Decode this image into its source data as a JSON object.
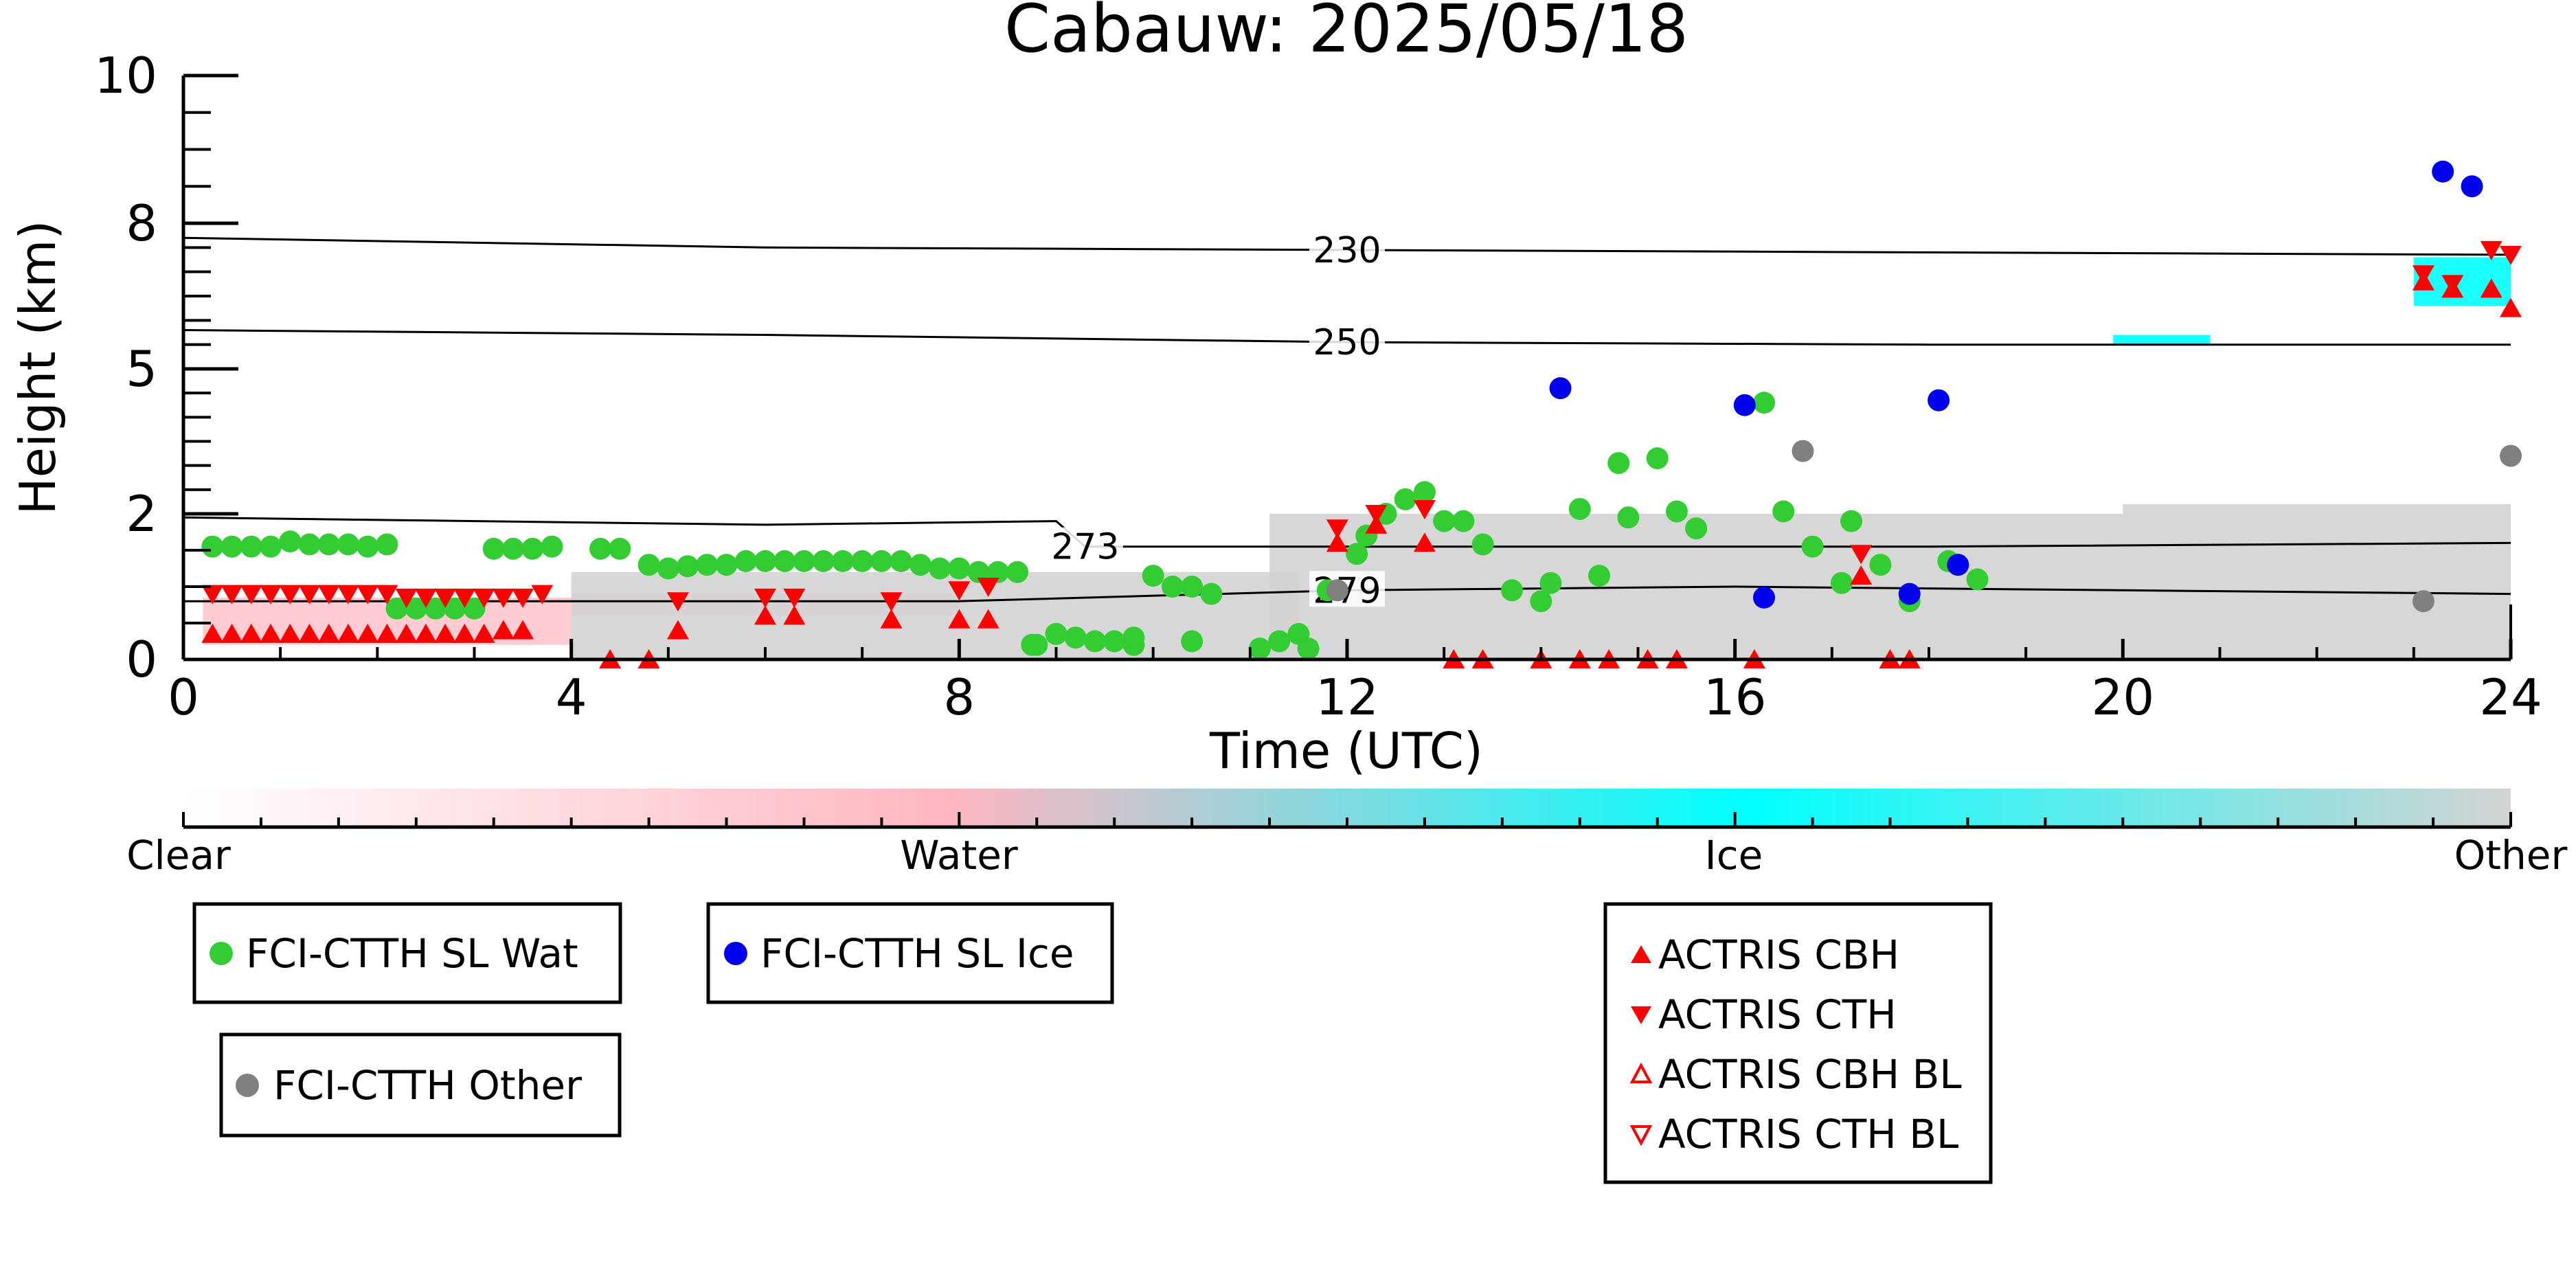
{
  "chart_data": {
    "type": "scatter",
    "title": "Cabauw: 2025/05/18",
    "xlabel": "Time (UTC)",
    "ylabel": "Height (km)",
    "xlim": [
      0,
      24
    ],
    "ylim": [
      0,
      10
    ],
    "x_ticks": [
      0,
      4,
      8,
      12,
      16,
      20,
      24
    ],
    "y_ticks": [
      0,
      2,
      5,
      8,
      10
    ],
    "y_scale": "nonlinear (0-2 km expanded)",
    "grid": false,
    "colorbar": {
      "labels": [
        "Clear",
        "Water",
        "Ice",
        "Other"
      ],
      "colors": [
        "#ffffff",
        "#ffb6c1",
        "#00ffff",
        "#d3d3d3"
      ]
    },
    "contours": [
      {
        "label": "230",
        "points": [
          [
            0,
            7.7
          ],
          [
            6,
            7.5
          ],
          [
            12,
            7.45
          ],
          [
            18,
            7.4
          ],
          [
            24,
            7.35
          ]
        ]
      },
      {
        "label": "250",
        "points": [
          [
            0,
            5.8
          ],
          [
            6,
            5.7
          ],
          [
            12,
            5.55
          ],
          [
            18,
            5.5
          ],
          [
            24,
            5.5
          ]
        ]
      },
      {
        "label": "273",
        "points": [
          [
            0,
            1.95
          ],
          [
            6,
            1.85
          ],
          [
            9,
            1.9
          ],
          [
            9.3,
            1.55
          ],
          [
            12,
            1.55
          ],
          [
            18,
            1.55
          ],
          [
            24,
            1.6
          ]
        ]
      },
      {
        "label": "279",
        "points": [
          [
            0,
            0.8
          ],
          [
            4,
            0.8
          ],
          [
            8,
            0.8
          ],
          [
            12,
            0.95
          ],
          [
            16,
            1.0
          ],
          [
            20,
            0.95
          ],
          [
            24,
            0.9
          ]
        ]
      }
    ],
    "cloud_regions": [
      {
        "class": "Water",
        "x": [
          0.2,
          4.0
        ],
        "y": [
          0.2,
          0.85
        ]
      },
      {
        "class": "Water",
        "x": [
          4.0,
          8.0
        ],
        "y": [
          0.6,
          0.9
        ]
      },
      {
        "class": "Other",
        "x": [
          4.0,
          11.5
        ],
        "y": [
          0.0,
          1.2
        ]
      },
      {
        "class": "Other",
        "x": [
          11.2,
          20.0
        ],
        "y": [
          0.0,
          2.0
        ]
      },
      {
        "class": "Other",
        "x": [
          20.0,
          24.0
        ],
        "y": [
          0.0,
          2.2
        ]
      },
      {
        "class": "Ice",
        "x": [
          19.9,
          20.9
        ],
        "y": [
          5.5,
          5.7
        ]
      },
      {
        "class": "Ice",
        "x": [
          23.0,
          24.0
        ],
        "y": [
          6.3,
          7.3
        ]
      }
    ],
    "series": [
      {
        "name": "FCI-CTTH SL Wat",
        "marker": "circle",
        "color": "#33cc33",
        "x": [
          0.3,
          0.5,
          0.7,
          0.9,
          1.1,
          1.3,
          1.5,
          1.7,
          1.9,
          2.1,
          2.2,
          2.4,
          2.6,
          2.8,
          3.0,
          3.2,
          3.4,
          3.6,
          3.8,
          4.3,
          4.5,
          4.8,
          5.0,
          5.2,
          5.4,
          5.6,
          5.8,
          6.0,
          6.2,
          6.4,
          6.6,
          6.8,
          7.0,
          7.2,
          7.4,
          7.6,
          7.8,
          8.0,
          8.2,
          8.4,
          8.6,
          8.8,
          9.0,
          9.2,
          9.4,
          9.6,
          9.8,
          10.0,
          10.2,
          10.4,
          10.6,
          8.75,
          9.0,
          9.8,
          10.4,
          11.1,
          11.3,
          11.5,
          11.6,
          11.8,
          12.1,
          12.2,
          12.4,
          12.6,
          12.8,
          13.0,
          13.2,
          13.4,
          13.7,
          14.0,
          14.1,
          14.4,
          14.6,
          14.8,
          14.9,
          15.2,
          15.4,
          15.6,
          16.3,
          16.5,
          16.8,
          17.1,
          17.2,
          17.5,
          17.8,
          18.2,
          18.5
        ],
        "y": [
          1.55,
          1.55,
          1.55,
          1.55,
          1.62,
          1.58,
          1.58,
          1.58,
          1.55,
          1.58,
          0.7,
          0.7,
          0.7,
          0.7,
          0.7,
          1.52,
          1.52,
          1.52,
          1.55,
          1.52,
          1.52,
          1.3,
          1.25,
          1.28,
          1.3,
          1.3,
          1.35,
          1.35,
          1.35,
          1.35,
          1.35,
          1.35,
          1.35,
          1.35,
          1.35,
          1.3,
          1.25,
          1.25,
          1.2,
          1.2,
          1.2,
          0.2,
          0.35,
          0.3,
          0.25,
          0.25,
          0.2,
          1.15,
          1.0,
          1.0,
          0.9,
          0.2,
          0.35,
          0.3,
          0.25,
          0.15,
          0.25,
          0.35,
          0.15,
          0.95,
          1.45,
          1.7,
          2.0,
          2.3,
          2.45,
          1.9,
          1.9,
          1.58,
          0.95,
          0.8,
          1.05,
          2.1,
          1.15,
          3.05,
          1.95,
          3.15,
          2.05,
          1.8,
          4.3,
          2.05,
          1.55,
          1.05,
          1.9,
          1.3,
          0.8,
          1.35,
          1.1
        ],
        "y_note": "heights in km"
      },
      {
        "name": "FCI-CTTH SL Ice",
        "marker": "circle",
        "color": "#0000ee",
        "x": [
          14.2,
          16.1,
          16.3,
          17.8,
          18.1,
          18.3,
          23.3,
          23.6
        ],
        "y": [
          4.6,
          4.25,
          0.85,
          0.9,
          4.35,
          1.3,
          8.7,
          8.5
        ]
      },
      {
        "name": "FCI-CTTH Other",
        "marker": "circle",
        "color": "#808080",
        "x": [
          11.9,
          16.7,
          23.1,
          24.0
        ],
        "y": [
          0.95,
          3.3,
          0.8,
          3.2
        ]
      },
      {
        "name": "ACTRIS CBH",
        "marker": "triangle-up",
        "color": "#ff0000",
        "x": [
          0.3,
          0.5,
          0.7,
          0.9,
          1.1,
          1.3,
          1.5,
          1.7,
          1.9,
          2.1,
          2.3,
          2.5,
          2.7,
          2.9,
          3.1,
          3.3,
          3.5,
          5.1,
          6.0,
          6.3,
          7.3,
          8.0,
          8.3,
          4.4,
          4.8,
          11.9,
          12.3,
          12.8,
          23.1,
          23.4,
          23.8,
          24.0,
          13.1,
          13.4,
          14.0,
          14.4,
          14.7,
          15.1,
          15.4,
          16.2,
          17.3,
          17.6,
          17.8
        ],
        "y": [
          0.35,
          0.35,
          0.35,
          0.35,
          0.35,
          0.35,
          0.35,
          0.35,
          0.35,
          0.35,
          0.35,
          0.35,
          0.35,
          0.35,
          0.35,
          0.4,
          0.4,
          0.4,
          0.6,
          0.6,
          0.55,
          0.55,
          0.55,
          0.0,
          0.0,
          1.6,
          1.85,
          1.6,
          6.8,
          6.65,
          6.65,
          6.25,
          0.0,
          0.0,
          0.0,
          0.0,
          0.0,
          0.0,
          0.0,
          0.0,
          1.15,
          0.0,
          0.0
        ]
      },
      {
        "name": "ACTRIS CTH",
        "marker": "triangle-down",
        "color": "#ff0000",
        "x": [
          0.3,
          0.5,
          0.7,
          0.9,
          1.1,
          1.3,
          1.5,
          1.7,
          1.9,
          2.1,
          2.3,
          2.5,
          2.7,
          2.9,
          3.1,
          3.3,
          3.5,
          3.7,
          5.1,
          6.0,
          6.3,
          7.3,
          8.0,
          8.3,
          11.9,
          12.3,
          12.8,
          17.3,
          23.1,
          23.4,
          23.8,
          24.0
        ],
        "y": [
          0.9,
          0.9,
          0.9,
          0.9,
          0.9,
          0.9,
          0.9,
          0.9,
          0.9,
          0.9,
          0.85,
          0.85,
          0.85,
          0.85,
          0.85,
          0.85,
          0.85,
          0.9,
          0.8,
          0.85,
          0.85,
          0.8,
          0.95,
          1.0,
          1.8,
          2.0,
          2.1,
          1.45,
          6.95,
          6.75,
          7.45,
          7.35
        ]
      },
      {
        "name": "ACTRIS CBH BL",
        "marker": "triangle-up-open",
        "color": "#ff0000",
        "x": [],
        "y": []
      },
      {
        "name": "ACTRIS CTH BL",
        "marker": "triangle-down-open",
        "color": "#ff0000",
        "x": [],
        "y": []
      }
    ]
  }
}
